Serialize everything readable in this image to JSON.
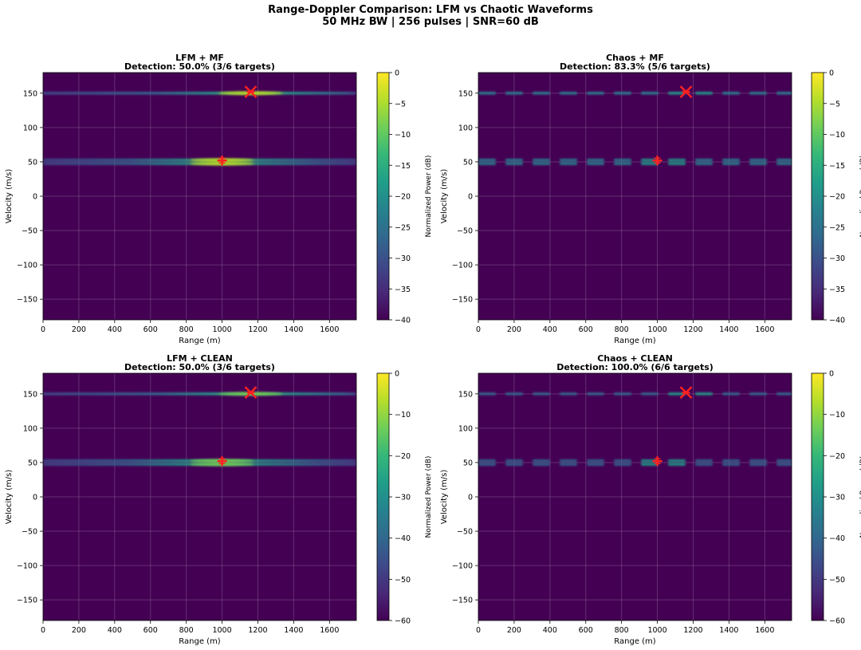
{
  "figure": {
    "title_line1": "Range-Doppler Comparison: LFM vs Chaotic Waveforms",
    "title_line2": "50 MHz BW | 256 pulses | SNR=60 dB"
  },
  "colors": {
    "viridis": [
      "#440154",
      "#482878",
      "#3e4989",
      "#31688e",
      "#26828e",
      "#1f9e89",
      "#35b779",
      "#6ece58",
      "#b5de2b",
      "#fde725"
    ],
    "background": "#440154",
    "grid": "#ffffff",
    "marker": "#ff2020"
  },
  "chart_data": [
    {
      "type": "heatmap",
      "title": "LFM + MF",
      "subtitle": "Detection: 50.0% (3/6 targets)",
      "xlabel": "Range (m)",
      "ylabel": "Velocity (m/s)",
      "xlim": [
        0,
        1750
      ],
      "ylim": [
        -180,
        180
      ],
      "xticks": [
        0,
        200,
        400,
        600,
        800,
        1000,
        1200,
        1400,
        1600
      ],
      "yticks": [
        -150,
        -100,
        -50,
        0,
        50,
        100,
        150
      ],
      "grid": true,
      "colorbar": {
        "label": "Normalized Power (dB)",
        "min": -40,
        "max": 0,
        "ticks": [
          -40,
          -35,
          -30,
          -25,
          -20,
          -15,
          -10,
          -5,
          0
        ]
      },
      "bands": [
        {
          "velocity": 150,
          "peak_range": 1160,
          "pattern": "continuous"
        },
        {
          "velocity": 50,
          "peak_range": 1000,
          "pattern": "continuous"
        }
      ],
      "targets": [
        {
          "range": 1160,
          "velocity": 152,
          "marker": "x"
        },
        {
          "range": 1000,
          "velocity": 52,
          "marker": "+"
        }
      ]
    },
    {
      "type": "heatmap",
      "title": "Chaos + MF",
      "subtitle": "Detection: 83.3% (5/6 targets)",
      "xlabel": "Range (m)",
      "ylabel": "Velocity (m/s)",
      "xlim": [
        0,
        1750
      ],
      "ylim": [
        -180,
        180
      ],
      "xticks": [
        0,
        200,
        400,
        600,
        800,
        1000,
        1200,
        1400,
        1600
      ],
      "yticks": [
        -150,
        -100,
        -50,
        0,
        50,
        100,
        150
      ],
      "grid": true,
      "colorbar": {
        "label": "Normalized Power (dB)",
        "min": -40,
        "max": 0,
        "ticks": [
          -40,
          -35,
          -30,
          -25,
          -20,
          -15,
          -10,
          -5,
          0
        ]
      },
      "bands": [
        {
          "velocity": 150,
          "peak_range": 1160,
          "pattern": "dashed"
        },
        {
          "velocity": 50,
          "peak_range": 1000,
          "pattern": "dashed"
        }
      ],
      "targets": [
        {
          "range": 1160,
          "velocity": 152,
          "marker": "x"
        },
        {
          "range": 1000,
          "velocity": 52,
          "marker": "+"
        }
      ]
    },
    {
      "type": "heatmap",
      "title": "LFM + CLEAN",
      "subtitle": "Detection: 50.0% (3/6 targets)",
      "xlabel": "Range (m)",
      "ylabel": "Velocity (m/s)",
      "xlim": [
        0,
        1750
      ],
      "ylim": [
        -180,
        180
      ],
      "xticks": [
        0,
        200,
        400,
        600,
        800,
        1000,
        1200,
        1400,
        1600
      ],
      "yticks": [
        -150,
        -100,
        -50,
        0,
        50,
        100,
        150
      ],
      "grid": true,
      "colorbar": {
        "label": "Normalized Power (dB)",
        "min": -60,
        "max": 0,
        "ticks": [
          -60,
          -50,
          -40,
          -30,
          -20,
          -10,
          0
        ]
      },
      "bands": [
        {
          "velocity": 150,
          "peak_range": 1160,
          "pattern": "continuous"
        },
        {
          "velocity": 50,
          "peak_range": 1000,
          "pattern": "continuous"
        }
      ],
      "targets": [
        {
          "range": 1160,
          "velocity": 152,
          "marker": "x"
        },
        {
          "range": 1000,
          "velocity": 52,
          "marker": "+"
        }
      ]
    },
    {
      "type": "heatmap",
      "title": "Chaos + CLEAN",
      "subtitle": "Detection: 100.0% (6/6 targets)",
      "xlabel": "Range (m)",
      "ylabel": "Velocity (m/s)",
      "xlim": [
        0,
        1750
      ],
      "ylim": [
        -180,
        180
      ],
      "xticks": [
        0,
        200,
        400,
        600,
        800,
        1000,
        1200,
        1400,
        1600
      ],
      "yticks": [
        -150,
        -100,
        -50,
        0,
        50,
        100,
        150
      ],
      "grid": true,
      "colorbar": {
        "label": "Normalized Power (dB)",
        "min": -60,
        "max": 0,
        "ticks": [
          -60,
          -50,
          -40,
          -30,
          -20,
          -10,
          0
        ]
      },
      "bands": [
        {
          "velocity": 150,
          "peak_range": 1160,
          "pattern": "dashed"
        },
        {
          "velocity": 50,
          "peak_range": 1000,
          "pattern": "dashed"
        }
      ],
      "targets": [
        {
          "range": 1160,
          "velocity": 152,
          "marker": "x"
        },
        {
          "range": 1000,
          "velocity": 52,
          "marker": "+"
        }
      ]
    }
  ]
}
